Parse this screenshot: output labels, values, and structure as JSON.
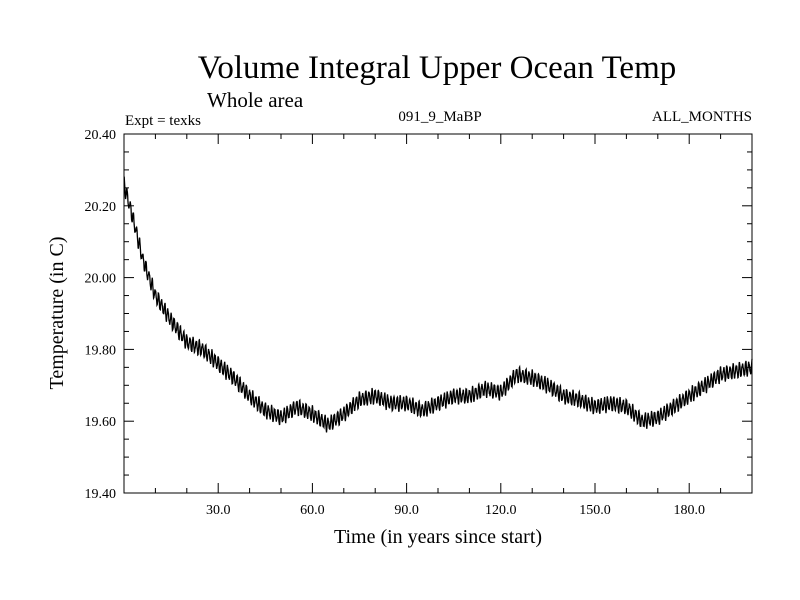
{
  "chart_data": {
    "type": "line",
    "title": "Volume Integral Upper Ocean Temp",
    "subtitle": "Whole area",
    "experiment": "Expt = texks",
    "run_id": "091_9_MaBP",
    "period": "ALL_MONTHS",
    "xlabel": "Time (in years since start)",
    "ylabel": "Temperature (in C)",
    "xlim": [
      0,
      200
    ],
    "ylim": [
      19.4,
      20.4
    ],
    "x_ticks": [
      30,
      60,
      90,
      120,
      150,
      180
    ],
    "x_tick_labels": [
      "30.0",
      "60.0",
      "90.0",
      "120.0",
      "150.0",
      "180.0"
    ],
    "y_ticks": [
      19.4,
      19.6,
      19.8,
      20.0,
      20.2,
      20.4
    ],
    "y_tick_labels": [
      "19.40",
      "19.60",
      "19.80",
      "20.00",
      "20.20",
      "20.40"
    ],
    "seasonal_amplitude": 0.018,
    "series": [
      {
        "name": "Volume integral upper ocean temperature",
        "color": "#000000",
        "x": [
          0,
          3,
          6,
          10,
          15,
          20,
          25,
          30,
          35,
          40,
          45,
          50,
          55,
          60,
          65,
          70,
          75,
          80,
          85,
          90,
          95,
          100,
          105,
          110,
          115,
          120,
          125,
          130,
          135,
          140,
          145,
          150,
          155,
          160,
          165,
          170,
          175,
          180,
          185,
          190,
          195,
          200
        ],
        "y": [
          20.26,
          20.16,
          20.05,
          19.95,
          19.88,
          19.82,
          19.8,
          19.76,
          19.72,
          19.67,
          19.63,
          19.61,
          19.64,
          19.62,
          19.59,
          19.62,
          19.66,
          19.67,
          19.65,
          19.65,
          19.63,
          19.65,
          19.67,
          19.67,
          19.69,
          19.68,
          19.73,
          19.72,
          19.7,
          19.67,
          19.66,
          19.64,
          19.65,
          19.64,
          19.6,
          19.61,
          19.64,
          19.67,
          19.7,
          19.73,
          19.74,
          19.75
        ]
      }
    ]
  }
}
